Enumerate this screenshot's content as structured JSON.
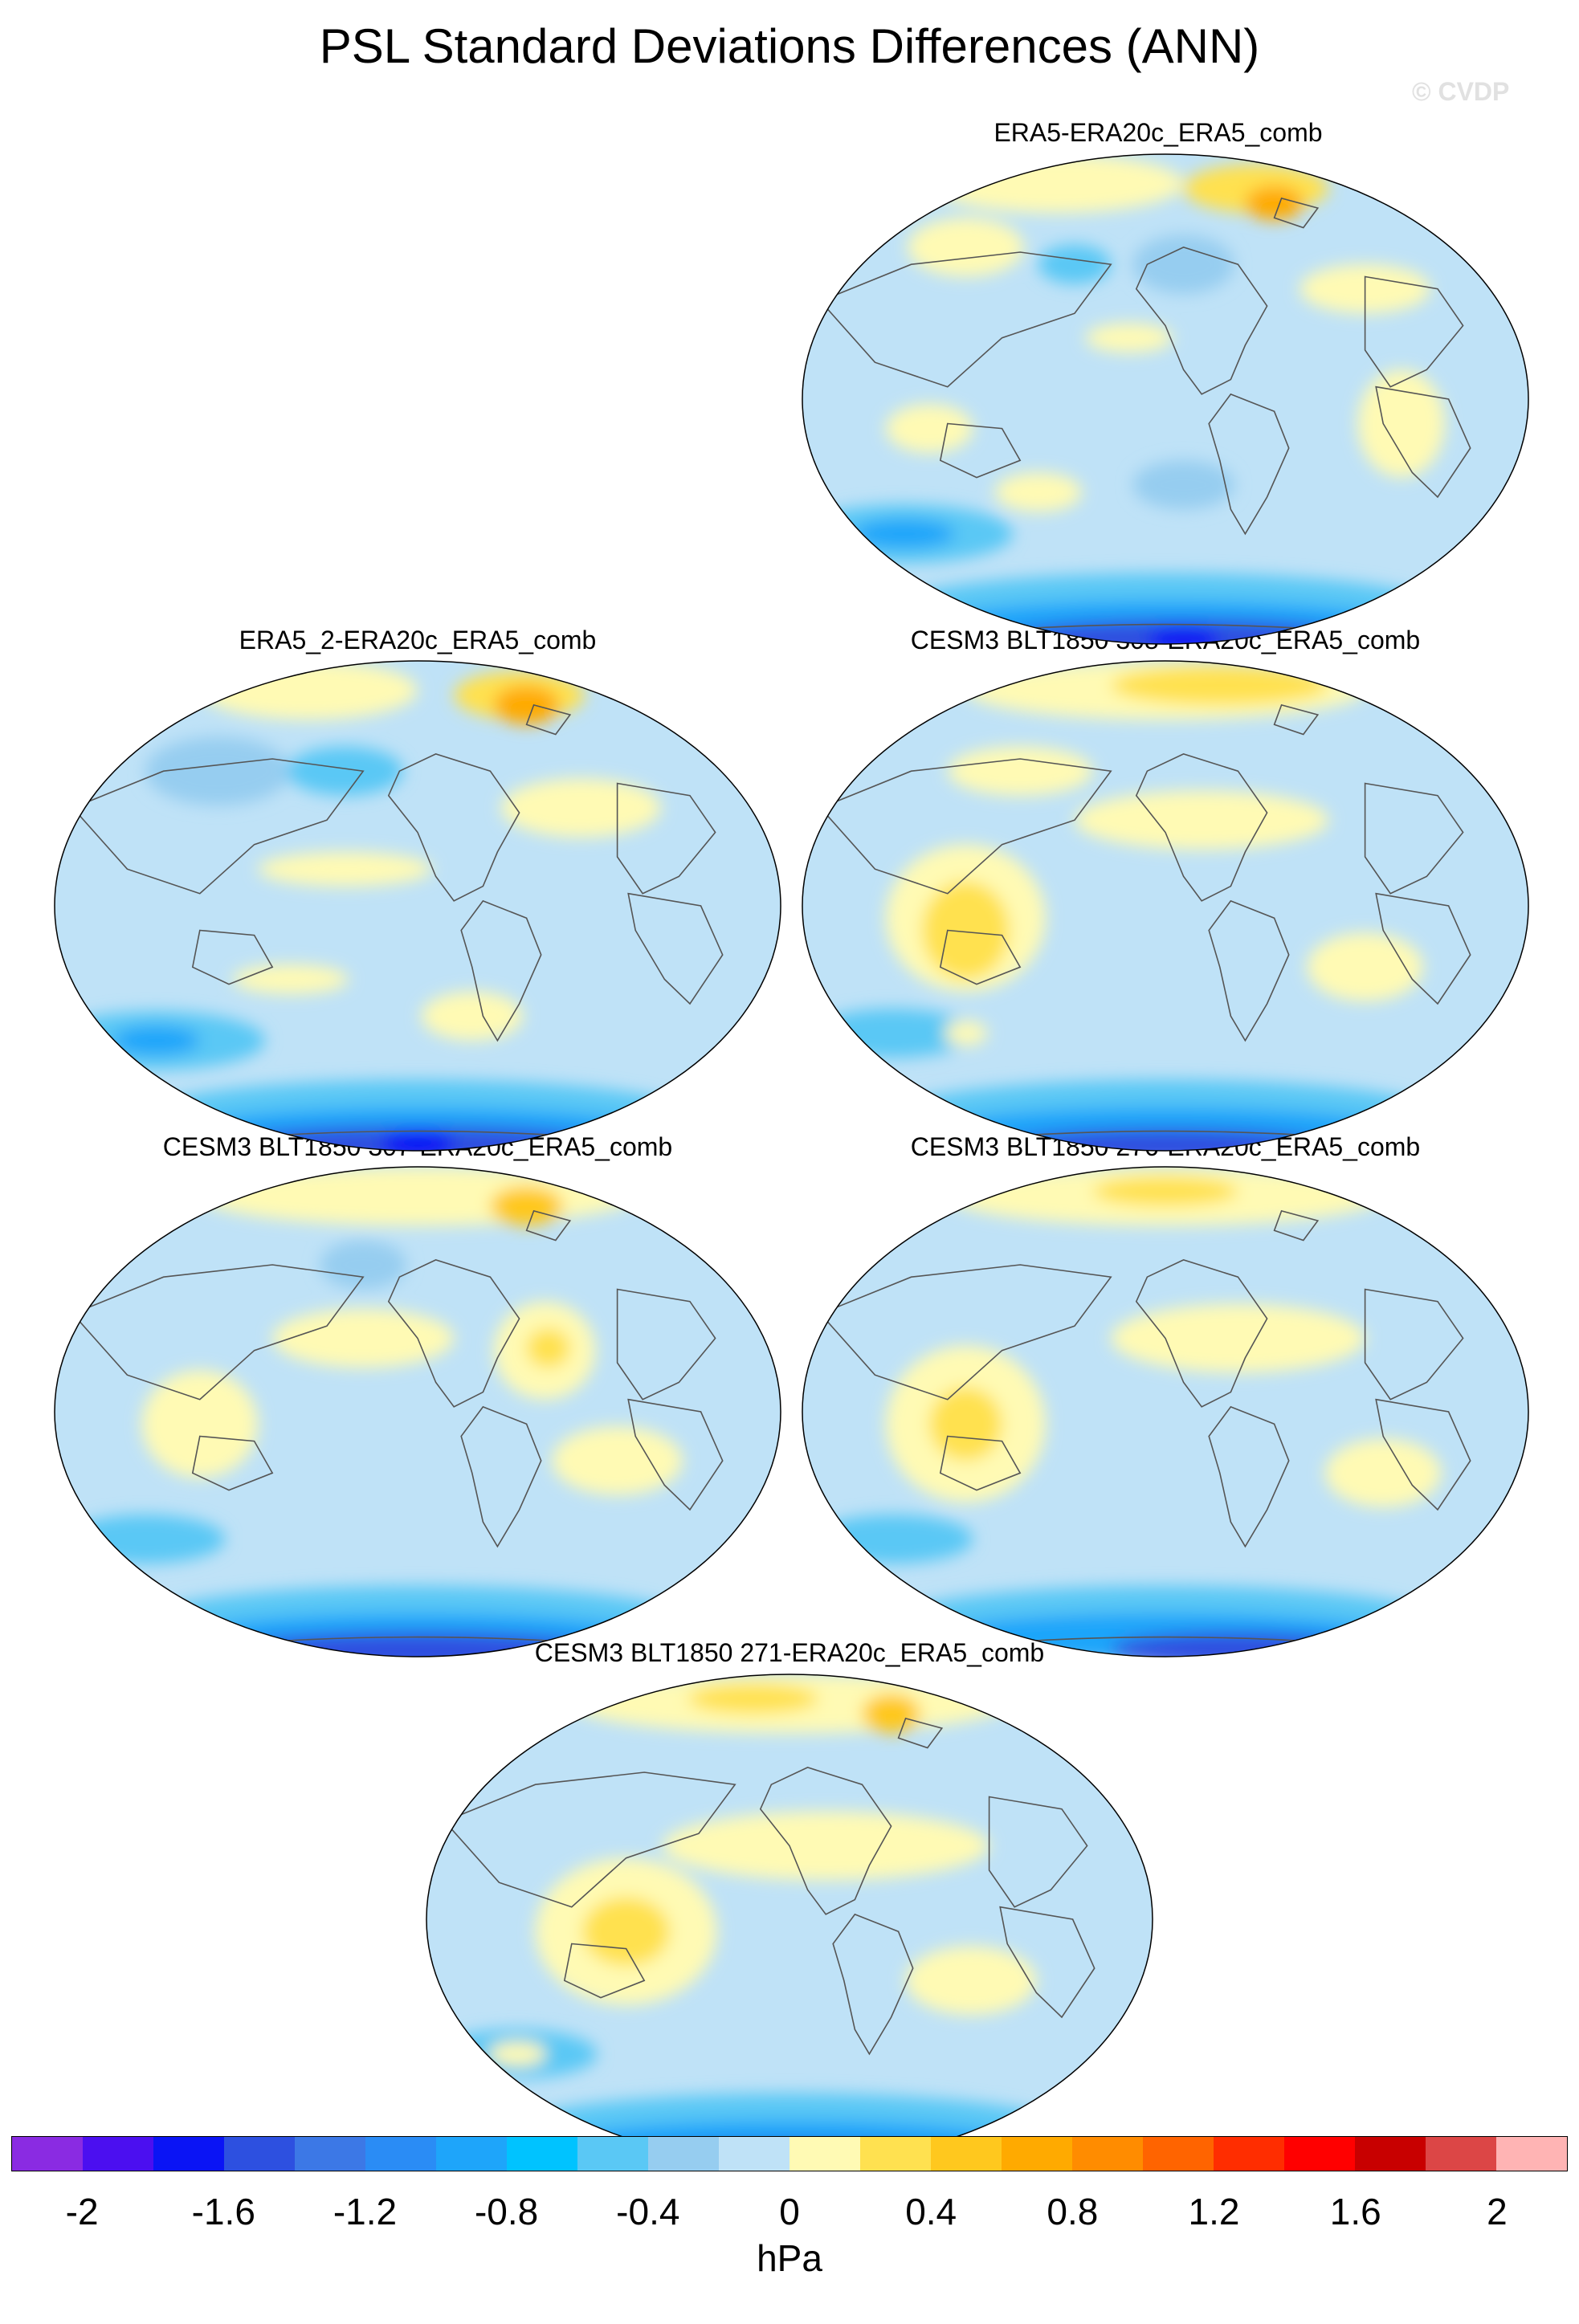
{
  "title": "PSL Standard Deviations Differences (ANN)",
  "watermark": "© CVDP",
  "panels": [
    {
      "name": "ERA5-ERA20c_ERA5_comb",
      "variant": 0
    },
    {
      "name": "ERA5_2-ERA20c_ERA5_comb",
      "variant": 1
    },
    {
      "name": "CESM3 BLT1850 308-ERA20c_ERA5_comb",
      "variant": 2
    },
    {
      "name": "CESM3 BLT1850 307-ERA20c_ERA5_comb",
      "variant": 3
    },
    {
      "name": "CESM3 BLT1850 276-ERA20c_ERA5_comb",
      "variant": 4
    },
    {
      "name": "CESM3 BLT1850 271-ERA20c_ERA5_comb",
      "variant": 5
    }
  ],
  "colorbar": {
    "unit": "hPa",
    "colors": [
      "#8a2be2",
      "#4b0ff0",
      "#0a14f5",
      "#2d50e0",
      "#3c78e6",
      "#2a8cf5",
      "#1ea5fa",
      "#00c3ff",
      "#5ac8f5",
      "#96cdf0",
      "#bfe2f7",
      "#fffab4",
      "#ffe150",
      "#ffc81e",
      "#ffaa00",
      "#ff8c00",
      "#ff6400",
      "#ff2d00",
      "#ff0000",
      "#c80000",
      "#dc4646",
      "#ffb4b4"
    ],
    "tick_labels": [
      "-2",
      "-1.6",
      "-1.2",
      "-0.8",
      "-0.4",
      "0",
      "0.4",
      "0.8",
      "1.2",
      "1.6",
      "2"
    ]
  }
}
